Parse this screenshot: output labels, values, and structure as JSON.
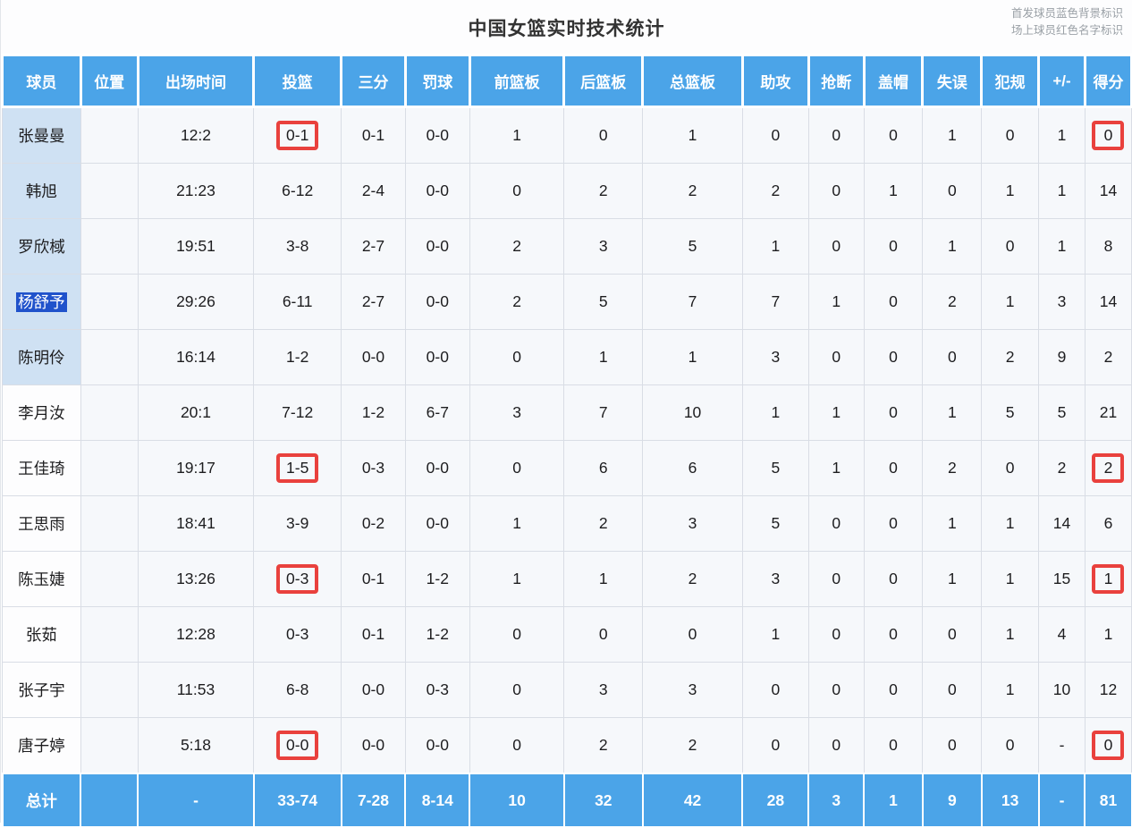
{
  "page": {
    "title": "中国女篮实时技术统计",
    "legend_line1": "首发球员蓝色背景标识",
    "legend_line2": "场上球员红色名字标识"
  },
  "colors": {
    "header_blue": "#4BA4E8",
    "starter_name_bg": "#CFE1F3",
    "selection_blue": "#2052CB",
    "highlight_red": "#E9413D",
    "cell_bg": "#F6F8FB",
    "grid_line": "#D9DDE5"
  },
  "table": {
    "columns": [
      "球员",
      "位置",
      "出场时间",
      "投篮",
      "三分",
      "罚球",
      "前篮板",
      "后篮板",
      "总篮板",
      "助攻",
      "抢断",
      "盖帽",
      "失误",
      "犯规",
      "+/-",
      "得分"
    ],
    "rows": [
      {
        "player": "张曼曼",
        "starter": true,
        "selected": false,
        "stats": [
          "",
          "12:2",
          "0-1",
          "0-1",
          "0-0",
          "1",
          "0",
          "1",
          "0",
          "0",
          "0",
          "1",
          "0",
          "1",
          "0"
        ],
        "boxed": [
          2,
          14
        ]
      },
      {
        "player": "韩旭",
        "starter": true,
        "selected": false,
        "stats": [
          "",
          "21:23",
          "6-12",
          "2-4",
          "0-0",
          "0",
          "2",
          "2",
          "2",
          "0",
          "1",
          "0",
          "1",
          "1",
          "14"
        ],
        "boxed": []
      },
      {
        "player": "罗欣棫",
        "starter": true,
        "selected": false,
        "stats": [
          "",
          "19:51",
          "3-8",
          "2-7",
          "0-0",
          "2",
          "3",
          "5",
          "1",
          "0",
          "0",
          "1",
          "0",
          "1",
          "8"
        ],
        "boxed": []
      },
      {
        "player": "杨舒予",
        "starter": true,
        "selected": true,
        "stats": [
          "",
          "29:26",
          "6-11",
          "2-7",
          "0-0",
          "2",
          "5",
          "7",
          "7",
          "1",
          "0",
          "2",
          "1",
          "3",
          "14"
        ],
        "boxed": []
      },
      {
        "player": "陈明伶",
        "starter": true,
        "selected": false,
        "stats": [
          "",
          "16:14",
          "1-2",
          "0-0",
          "0-0",
          "0",
          "1",
          "1",
          "3",
          "0",
          "0",
          "0",
          "2",
          "9",
          "2"
        ],
        "boxed": []
      },
      {
        "player": "李月汝",
        "starter": false,
        "selected": false,
        "stats": [
          "",
          "20:1",
          "7-12",
          "1-2",
          "6-7",
          "3",
          "7",
          "10",
          "1",
          "1",
          "0",
          "1",
          "5",
          "5",
          "21"
        ],
        "boxed": []
      },
      {
        "player": "王佳琦",
        "starter": false,
        "selected": false,
        "stats": [
          "",
          "19:17",
          "1-5",
          "0-3",
          "0-0",
          "0",
          "6",
          "6",
          "5",
          "1",
          "0",
          "2",
          "0",
          "2",
          "2"
        ],
        "boxed": [
          2,
          14
        ]
      },
      {
        "player": "王思雨",
        "starter": false,
        "selected": false,
        "stats": [
          "",
          "18:41",
          "3-9",
          "0-2",
          "0-0",
          "1",
          "2",
          "3",
          "5",
          "0",
          "0",
          "1",
          "1",
          "14",
          "6"
        ],
        "boxed": []
      },
      {
        "player": "陈玉婕",
        "starter": false,
        "selected": false,
        "stats": [
          "",
          "13:26",
          "0-3",
          "0-1",
          "1-2",
          "1",
          "1",
          "2",
          "3",
          "0",
          "0",
          "1",
          "1",
          "15",
          "1"
        ],
        "boxed": [
          2,
          14
        ]
      },
      {
        "player": "张茹",
        "starter": false,
        "selected": false,
        "stats": [
          "",
          "12:28",
          "0-3",
          "0-1",
          "1-2",
          "0",
          "0",
          "0",
          "1",
          "0",
          "0",
          "0",
          "1",
          "4",
          "1"
        ],
        "boxed": []
      },
      {
        "player": "张子宇",
        "starter": false,
        "selected": false,
        "stats": [
          "",
          "11:53",
          "6-8",
          "0-0",
          "0-3",
          "0",
          "3",
          "3",
          "0",
          "0",
          "0",
          "0",
          "1",
          "10",
          "12"
        ],
        "boxed": []
      },
      {
        "player": "唐子婷",
        "starter": false,
        "selected": false,
        "stats": [
          "",
          "5:18",
          "0-0",
          "0-0",
          "0-0",
          "0",
          "2",
          "2",
          "0",
          "0",
          "0",
          "0",
          "0",
          "-",
          "0"
        ],
        "boxed": [
          2,
          14
        ]
      }
    ],
    "total": {
      "label": "总计",
      "stats": [
        "",
        "-",
        "33-74",
        "7-28",
        "8-14",
        "10",
        "32",
        "42",
        "28",
        "3",
        "1",
        "9",
        "13",
        "-",
        "81"
      ]
    }
  }
}
